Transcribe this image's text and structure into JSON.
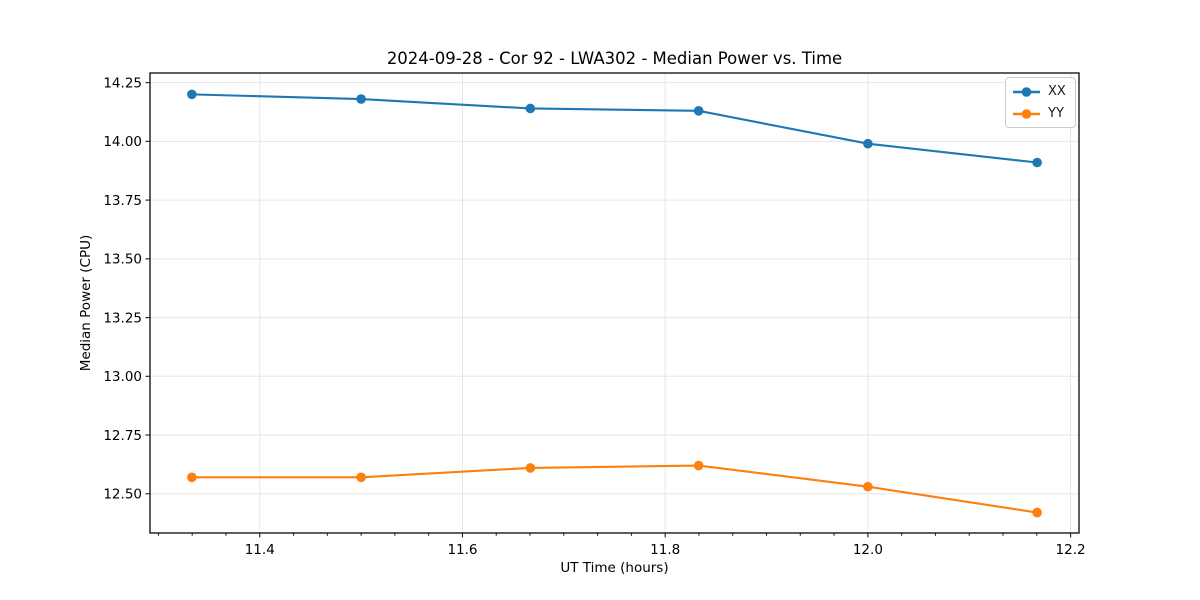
{
  "chart_data": {
    "type": "line",
    "title": "2024-09-28 - Cor 92 - LWA302 - Median Power vs. Time",
    "xlabel": "UT Time (hours)",
    "ylabel": "Median Power (CPU)",
    "x": [
      11.333,
      11.5,
      11.667,
      11.833,
      12.0,
      12.167
    ],
    "series": [
      {
        "name": "XX",
        "color": "#1f77b4",
        "values": [
          14.2,
          14.18,
          14.14,
          14.13,
          13.99,
          13.91
        ]
      },
      {
        "name": "YY",
        "color": "#ff7f0e",
        "values": [
          12.57,
          12.57,
          12.61,
          12.62,
          12.53,
          12.42
        ]
      }
    ],
    "xlim": [
      11.2917,
      12.2083
    ],
    "ylim": [
      12.333,
      14.291
    ],
    "x_ticks": [
      11.4,
      11.6,
      11.8,
      12.0,
      12.2
    ],
    "x_tick_labels": [
      "11.4",
      "11.6",
      "11.8",
      "12.0",
      "12.2"
    ],
    "x_minor_tick_interval": 0.0333333,
    "y_ticks": [
      12.5,
      12.75,
      13.0,
      13.25,
      13.5,
      13.75,
      14.0,
      14.25
    ],
    "y_tick_labels": [
      "12.50",
      "12.75",
      "13.00",
      "13.25",
      "13.50",
      "13.75",
      "14.00",
      "14.25"
    ],
    "grid": true,
    "legend_position": "upper right",
    "legend_entries": [
      "XX",
      "YY"
    ],
    "colors": {
      "background": "#ffffff",
      "grid": "#e6e6e6",
      "spine": "#1a1a1a",
      "tick": "#1a1a1a",
      "text": "#000000"
    },
    "style": {
      "line_width": 2.1,
      "marker": "circle",
      "marker_radius": 4.8
    }
  }
}
